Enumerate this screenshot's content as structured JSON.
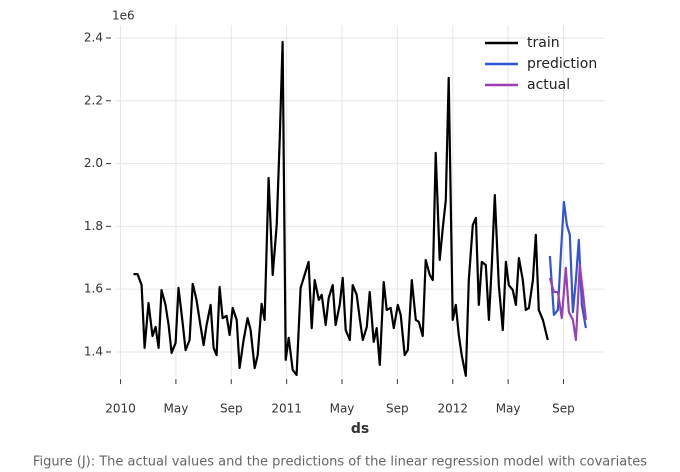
{
  "chart_data": {
    "type": "line",
    "y_offset_label": "1e6",
    "xlabel": "ds",
    "xlim": [
      -0.4,
      35
    ],
    "ylim": [
      1.32,
      2.44
    ],
    "xticks": [
      {
        "value": 0,
        "label": "2010"
      },
      {
        "value": 4,
        "label": "May"
      },
      {
        "value": 8,
        "label": "Sep"
      },
      {
        "value": 12,
        "label": "2011"
      },
      {
        "value": 16,
        "label": "May"
      },
      {
        "value": 20,
        "label": "Sep"
      },
      {
        "value": 24,
        "label": "2012"
      },
      {
        "value": 28,
        "label": "May"
      },
      {
        "value": 32,
        "label": "Sep"
      }
    ],
    "yticks": [
      1.4,
      1.6,
      1.8,
      {
        "value": 2,
        "label": "2.0"
      },
      2.2,
      2.4
    ],
    "grid": true,
    "legend": "upper right",
    "series": [
      {
        "name": "train",
        "color": "#000000",
        "x": [
          0.94,
          1.23,
          1.52,
          1.74,
          2.02,
          2.31,
          2.53,
          2.75,
          2.96,
          3.25,
          3.47,
          3.69,
          3.98,
          4.19,
          4.48,
          4.7,
          4.99,
          5.21,
          5.49,
          5.71,
          6.0,
          6.22,
          6.51,
          6.72,
          6.94,
          7.16,
          7.37,
          7.66,
          7.88,
          8.1,
          8.39,
          8.6,
          8.89,
          9.18,
          9.4,
          9.69,
          9.91,
          10.19,
          10.41,
          10.7,
          10.99,
          11.28,
          11.5,
          11.71,
          11.93,
          12.15,
          12.44,
          12.72,
          13.01,
          13.3,
          13.59,
          13.81,
          14.03,
          14.32,
          14.53,
          14.82,
          15.04,
          15.33,
          15.54,
          15.83,
          16.05,
          16.27,
          16.56,
          16.77,
          17.06,
          17.28,
          17.5,
          17.79,
          18.0,
          18.29,
          18.51,
          18.73,
          19.01,
          19.23,
          19.52,
          19.74,
          20.03,
          20.24,
          20.53,
          20.75,
          21.04,
          21.33,
          21.55,
          21.83,
          22.05,
          22.34,
          22.56,
          22.77,
          23.06,
          23.28,
          23.5,
          23.71,
          24.0,
          24.22,
          24.44,
          24.65,
          24.94,
          25.16,
          25.45,
          25.67,
          25.88,
          26.1,
          26.39,
          26.61,
          26.82,
          27.04,
          27.33,
          27.62,
          27.84,
          28.05,
          28.34,
          28.56,
          28.78,
          29.06,
          29.28,
          29.5,
          29.79,
          30.0,
          30.22,
          30.51,
          30.87
        ],
        "values": [
          1.648,
          1.648,
          1.613,
          1.413,
          1.556,
          1.451,
          1.48,
          1.413,
          1.597,
          1.55,
          1.486,
          1.397,
          1.429,
          1.604,
          1.496,
          1.406,
          1.438,
          1.617,
          1.566,
          1.502,
          1.422,
          1.486,
          1.55,
          1.413,
          1.39,
          1.607,
          1.508,
          1.515,
          1.454,
          1.54,
          1.502,
          1.349,
          1.438,
          1.508,
          1.47,
          1.349,
          1.39,
          1.553,
          1.502,
          1.954,
          1.645,
          1.804,
          2.075,
          2.387,
          1.375,
          1.445,
          1.343,
          1.327,
          1.604,
          1.645,
          1.687,
          1.476,
          1.629,
          1.566,
          1.582,
          1.486,
          1.572,
          1.613,
          1.486,
          1.55,
          1.636,
          1.47,
          1.438,
          1.613,
          1.582,
          1.508,
          1.438,
          1.48,
          1.591,
          1.432,
          1.476,
          1.359,
          1.623,
          1.534,
          1.54,
          1.476,
          1.55,
          1.518,
          1.39,
          1.406,
          1.629,
          1.502,
          1.496,
          1.451,
          1.693,
          1.645,
          1.629,
          2.034,
          1.693,
          1.795,
          1.884,
          2.273,
          1.502,
          1.55,
          1.454,
          1.39,
          1.324,
          1.629,
          1.804,
          1.827,
          1.55,
          1.687,
          1.677,
          1.502,
          1.677,
          1.9,
          1.613,
          1.47,
          1.687,
          1.613,
          1.597,
          1.55,
          1.699,
          1.629,
          1.534,
          1.54,
          1.629,
          1.773,
          1.534,
          1.502,
          1.438
        ]
      },
      {
        "name": "prediction",
        "color": "#2f54d6",
        "x": [
          31.02,
          31.31,
          31.6,
          31.81,
          32.03,
          32.25,
          32.46,
          32.68,
          32.9,
          33.11,
          33.33,
          33.62
        ],
        "values": [
          1.706,
          1.518,
          1.534,
          1.709,
          1.878,
          1.804,
          1.773,
          1.527,
          1.629,
          1.757,
          1.55,
          1.476
        ]
      },
      {
        "name": "actual",
        "color": "#9b3fb5",
        "x": [
          31.02,
          31.31,
          31.6,
          31.88,
          32.17,
          32.39,
          32.68,
          32.9,
          33.18,
          33.4,
          33.62
        ],
        "values": [
          1.636,
          1.591,
          1.591,
          1.508,
          1.668,
          1.527,
          1.502,
          1.438,
          1.677,
          1.591,
          1.502
        ]
      }
    ]
  },
  "caption": "Figure (J): The actual values and the predictions of the linear regression model with covariates"
}
